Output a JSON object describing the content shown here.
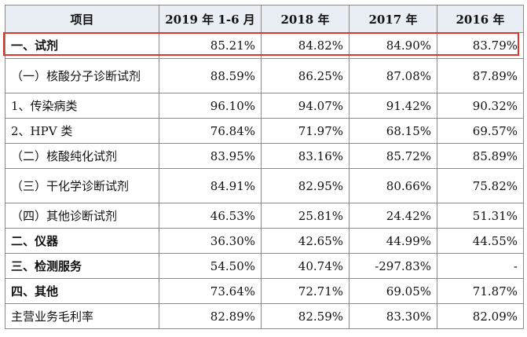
{
  "header": {
    "c0": "项目",
    "c1": "2019 年 1-6 月",
    "c2": "2018 年",
    "c3": "2017 年",
    "c4": "2016 年"
  },
  "rows": [
    {
      "label": "一、试剂",
      "v1": "85.21%",
      "v2": "84.82%",
      "v3": "84.90%",
      "v4": "83.79%"
    },
    {
      "label": "（一）核酸分子诊断试剂",
      "v1": "88.59%",
      "v2": "86.25%",
      "v3": "87.08%",
      "v4": "87.89%"
    },
    {
      "label": "1、传染病类",
      "v1": "96.10%",
      "v2": "94.07%",
      "v3": "91.42%",
      "v4": "90.32%"
    },
    {
      "label": "2、HPV 类",
      "v1": "76.84%",
      "v2": "71.97%",
      "v3": "68.15%",
      "v4": "69.57%"
    },
    {
      "label": "（二）核酸纯化试剂",
      "v1": "83.95%",
      "v2": "83.16%",
      "v3": "85.72%",
      "v4": "85.89%"
    },
    {
      "label": "（三）干化学诊断试剂",
      "v1": "84.91%",
      "v2": "82.95%",
      "v3": "80.66%",
      "v4": "75.82%"
    },
    {
      "label": "（四）其他诊断试剂",
      "v1": "46.53%",
      "v2": "25.81%",
      "v3": "24.42%",
      "v4": "51.31%"
    },
    {
      "label": "二、仪器",
      "v1": "36.30%",
      "v2": "42.65%",
      "v3": "44.99%",
      "v4": "44.55%"
    },
    {
      "label": "三、检测服务",
      "v1": "54.50%",
      "v2": "40.74%",
      "v3": "-297.83%",
      "v4": "-"
    },
    {
      "label": "四、其他",
      "v1": "73.64%",
      "v2": "72.71%",
      "v3": "69.05%",
      "v4": "71.87%"
    },
    {
      "label": "主营业务毛利率",
      "v1": "82.89%",
      "v2": "82.59%",
      "v3": "83.30%",
      "v4": "82.09%"
    }
  ],
  "colors": {
    "highlight": "#e0352b",
    "header_bg": "#e9eef4",
    "grid": "#8a8a8a"
  }
}
